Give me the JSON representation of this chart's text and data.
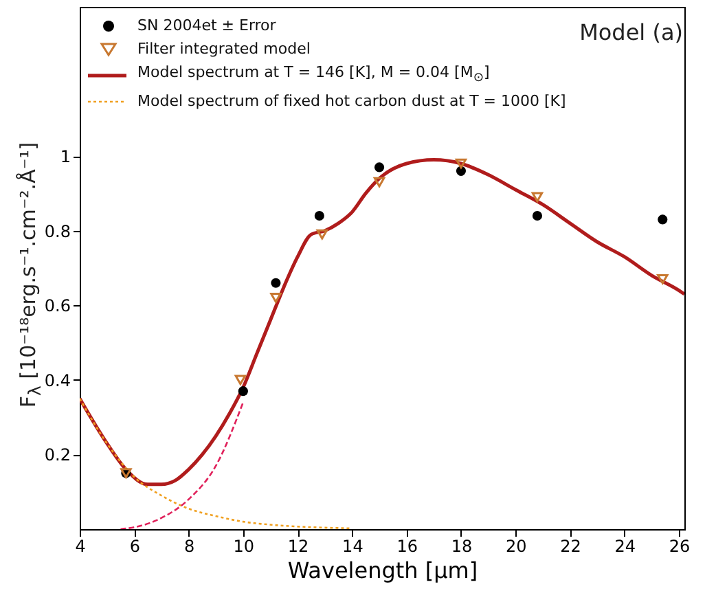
{
  "chart_data": {
    "type": "line",
    "xlabel": "Wavelength [μm]",
    "ylabel": "F$_{λ}$ [10⁻¹⁸erg.s⁻¹.cm⁻².Å⁻¹]",
    "annotations": [
      "Model (a)"
    ],
    "xlim": [
      4,
      26.2
    ],
    "xticks": [
      4,
      6,
      8,
      10,
      12,
      14,
      16,
      18,
      20,
      22,
      24,
      26
    ],
    "ylim": [
      0,
      1.4
    ],
    "yticks": [
      0.2,
      0.4,
      0.6,
      0.8,
      {
        "value": 1,
        "label": "1"
      }
    ],
    "legend": "top left",
    "grid": false,
    "series": [
      {
        "name": "SN 2004et ± Error",
        "type": "scatter",
        "marker": "circle",
        "color": "#000000",
        "x": [
          5.7,
          10,
          11.2,
          12.8,
          15,
          18,
          20.8,
          25.4
        ],
        "values": [
          0.15,
          0.37,
          0.66,
          0.84,
          0.97,
          0.96,
          0.84,
          0.83
        ]
      },
      {
        "name": "Filter integrated model",
        "type": "scatter",
        "marker": "triangle",
        "color": "#c87830",
        "x": [
          5.7,
          9.9,
          11.2,
          12.9,
          15,
          18,
          20.8,
          25.4
        ],
        "values": [
          0.15,
          0.4,
          0.62,
          0.79,
          0.93,
          0.98,
          0.89,
          0.67
        ]
      },
      {
        "name": "Model spectrum at T = 146 [K], M = 0.04 [M$_{⊙}$]",
        "line_style": "solid",
        "color": "#b01c1c",
        "x": [
          4,
          5,
          5.7,
          6.5,
          7,
          7.5,
          8,
          8.5,
          9,
          9.5,
          10,
          10.5,
          11,
          11.5,
          12,
          12.5,
          13,
          13.5,
          14,
          14.5,
          15,
          16,
          17,
          18,
          19,
          20,
          21,
          22,
          23,
          24,
          25,
          26,
          26.2
        ],
        "values": [
          0.35,
          0.23,
          0.16,
          0.12,
          0.12,
          0.13,
          0.16,
          0.2,
          0.25,
          0.31,
          0.38,
          0.47,
          0.56,
          0.65,
          0.73,
          0.79,
          0.8,
          0.82,
          0.85,
          0.9,
          0.94,
          0.98,
          0.99,
          0.98,
          0.95,
          0.91,
          0.87,
          0.82,
          0.77,
          0.73,
          0.68,
          0.64,
          0.63
        ]
      },
      {
        "name": "Model spectrum of fixed hot carbon dust at T = 1000 [K]",
        "line_style": "dotted",
        "color": "#f0a020",
        "x": [
          4,
          5,
          6,
          7,
          8,
          9,
          10,
          11,
          12,
          13,
          14
        ],
        "values": [
          0.35,
          0.23,
          0.14,
          0.09,
          0.055,
          0.035,
          0.02,
          0.012,
          0.007,
          0.004,
          0.002
        ]
      },
      {
        "line_style": "dashed",
        "color": "#e0205a",
        "x": [
          5.5,
          6,
          7,
          8,
          9,
          10
        ],
        "values": [
          0,
          0.005,
          0.03,
          0.08,
          0.17,
          0.34
        ]
      }
    ]
  }
}
